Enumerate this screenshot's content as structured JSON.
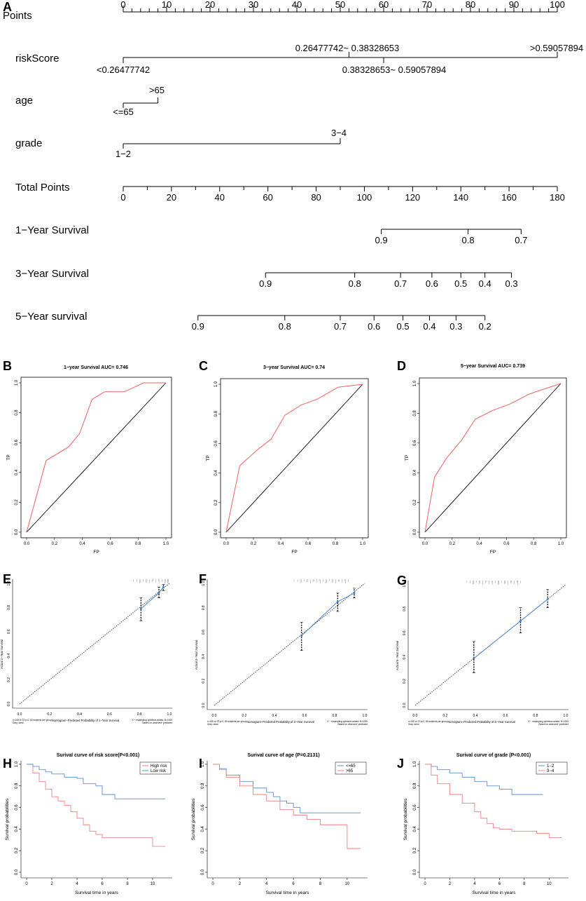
{
  "chart_data": [
    {
      "panel": "A",
      "type": "nomogram",
      "scales": [
        {
          "name": "Points",
          "min": 0,
          "max": 100,
          "ticks": [
            0,
            10,
            20,
            30,
            40,
            50,
            60,
            70,
            80,
            90,
            100
          ]
        },
        {
          "name": "riskScore",
          "labels": [
            "<0.26477742",
            "0.26477742~ 0.38328653",
            "0.38328653~ 0.59057894",
            ">0.59057894"
          ],
          "points": [
            0,
            52,
            60,
            100
          ]
        },
        {
          "name": "age",
          "labels": [
            "<=65",
            ">65"
          ],
          "points": [
            0,
            8
          ]
        },
        {
          "name": "grade",
          "labels": [
            "1−2",
            "3−4"
          ],
          "points": [
            0,
            50
          ]
        },
        {
          "name": "Total Points",
          "min": 0,
          "max": 180,
          "ticks": [
            0,
            20,
            40,
            60,
            80,
            100,
            120,
            140,
            160,
            180
          ]
        },
        {
          "name": "1−Year Survival",
          "probs": [
            "0.9",
            "0.8",
            "0.7"
          ],
          "total_points": [
            107,
            143,
            165
          ]
        },
        {
          "name": "3−Year Survival",
          "probs": [
            "0.9",
            "0.8",
            "0.7",
            "0.6",
            "0.5",
            "0.4",
            "0.3"
          ],
          "total_points": [
            59,
            96,
            115,
            128,
            140,
            150,
            161
          ]
        },
        {
          "name": "5−Year survival",
          "probs": [
            "0.9",
            "0.8",
            "0.7",
            "0.6",
            "0.5",
            "0.4",
            "0.3",
            "0.2"
          ],
          "total_points": [
            31,
            67,
            90,
            104,
            116,
            127,
            138,
            150
          ]
        }
      ]
    },
    {
      "panel": "B",
      "type": "line",
      "title": "1−year Survival AUC= 0.746",
      "xlabel": "FP",
      "ylabel": "TP",
      "xlim": [
        0,
        1
      ],
      "ylim": [
        0,
        1
      ],
      "ticks": [
        "0.0",
        "0.2",
        "0.4",
        "0.6",
        "0.8",
        "1.0"
      ],
      "x": [
        0,
        0.14,
        0.3,
        0.38,
        0.47,
        0.56,
        0.7,
        0.84,
        1
      ],
      "y": [
        0,
        0.48,
        0.57,
        0.66,
        0.89,
        0.94,
        0.94,
        1,
        1
      ]
    },
    {
      "panel": "C",
      "type": "line",
      "title": "3−year Survival AUC= 0.74",
      "xlabel": "FP",
      "ylabel": "TP",
      "xlim": [
        0,
        1
      ],
      "ylim": [
        0,
        1
      ],
      "ticks": [
        "0.0",
        "0.2",
        "0.4",
        "0.6",
        "0.8",
        "1.0"
      ],
      "x": [
        0,
        0.1,
        0.22,
        0.33,
        0.43,
        0.55,
        0.67,
        0.82,
        1
      ],
      "y": [
        0,
        0.45,
        0.55,
        0.63,
        0.79,
        0.86,
        0.9,
        0.98,
        1
      ]
    },
    {
      "panel": "D",
      "type": "line",
      "title": "5−year Survival AUC= 0.739",
      "xlabel": "FP",
      "ylabel": "TP",
      "xlim": [
        0,
        1
      ],
      "ylim": [
        0,
        1
      ],
      "ticks": [
        "0.0",
        "0.2",
        "0.4",
        "0.6",
        "0.8",
        "1.0"
      ],
      "x": [
        0,
        0.07,
        0.16,
        0.27,
        0.37,
        0.5,
        0.62,
        0.77,
        0.9,
        1
      ],
      "y": [
        0,
        0.37,
        0.5,
        0.62,
        0.76,
        0.82,
        0.86,
        0.93,
        0.97,
        1
      ]
    },
    {
      "panel": "E",
      "type": "calibration",
      "xlabel": "Nomogram−Predicted Probability of 1−Year Survival",
      "ylabel": "Actual 1−Year Survival",
      "ticks": [
        "0.0",
        "0.2",
        "0.4",
        "0.6",
        "0.8",
        "1.0"
      ],
      "notes": [
        "n=245 d=73 p=0, 80 subjects per group",
        "Gray: ideal",
        "X − resampling optimism added, B=1000",
        "Based on observed−predicted"
      ],
      "points": [
        {
          "x": 0.81,
          "y": 0.79,
          "lo": 0.69,
          "hi": 0.88
        },
        {
          "x": 0.93,
          "y": 0.92,
          "lo": 0.88,
          "hi": 0.97
        },
        {
          "x": 0.96,
          "y": 0.97,
          "lo": 0.94,
          "hi": 0.99
        }
      ]
    },
    {
      "panel": "F",
      "type": "calibration",
      "xlabel": "Nomogram−Predicted Probability of 3−Year Survival",
      "ylabel": "Actual 3−Year Survival",
      "ticks": [
        "0.0",
        "0.2",
        "0.4",
        "0.6",
        "0.8",
        "1.0"
      ],
      "notes": [
        "n=245 d=73 p=0, 80 subjects per group",
        "Gray: ideal",
        "X − resampling optimism added, B=1000",
        "Based on observed−predicted"
      ],
      "points": [
        {
          "x": 0.58,
          "y": 0.57,
          "lo": 0.45,
          "hi": 0.68
        },
        {
          "x": 0.82,
          "y": 0.85,
          "lo": 0.77,
          "hi": 0.92
        },
        {
          "x": 0.93,
          "y": 0.92,
          "lo": 0.88,
          "hi": 0.96
        }
      ]
    },
    {
      "panel": "G",
      "type": "calibration",
      "xlabel": "Nomogram−Predicted Probability of 5−Year Survival",
      "ylabel": "Actual 5−Year Survival",
      "ticks": [
        "0.0",
        "0.2",
        "0.4",
        "0.6",
        "0.8",
        "1.0"
      ],
      "notes": [
        "n=245 d=73 p=0, 80 subjects per group",
        "Gray: ideal",
        "X − resampling optimism added, B=1000",
        "Based on observed−predicted"
      ],
      "points": [
        {
          "x": 0.39,
          "y": 0.39,
          "lo": 0.27,
          "hi": 0.53
        },
        {
          "x": 0.7,
          "y": 0.7,
          "lo": 0.6,
          "hi": 0.81
        },
        {
          "x": 0.88,
          "y": 0.88,
          "lo": 0.81,
          "hi": 0.96
        }
      ]
    },
    {
      "panel": "H",
      "type": "line",
      "title": "Surival curve of risk score(P<0.001)",
      "xlabel": "Survival time in years",
      "ylabel": "Survival probabilities",
      "xlim": [
        0,
        11
      ],
      "ylim": [
        0,
        1
      ],
      "xticks": [
        "0",
        "2",
        "4",
        "6",
        "8",
        "10"
      ],
      "yticks": [
        "0.0",
        "0.2",
        "0.4",
        "0.6",
        "0.8",
        "1.0"
      ],
      "series": [
        {
          "name": "High risk",
          "color": "#f08080",
          "x": [
            0,
            0.5,
            1,
            1.5,
            2,
            2.5,
            3,
            3.5,
            4,
            4.5,
            5,
            5.5,
            6,
            7,
            8,
            9,
            10,
            11
          ],
          "y": [
            1,
            0.92,
            0.84,
            0.77,
            0.7,
            0.66,
            0.62,
            0.56,
            0.5,
            0.44,
            0.38,
            0.35,
            0.32,
            0.32,
            0.32,
            0.32,
            0.24,
            0.24
          ]
        },
        {
          "name": "Low risk",
          "color": "#5b8ed6",
          "x": [
            0,
            0.5,
            1,
            1.5,
            2,
            3,
            4,
            4.5,
            5,
            5.5,
            6,
            7,
            8,
            9,
            10,
            11
          ],
          "y": [
            1,
            0.98,
            0.95,
            0.93,
            0.91,
            0.88,
            0.87,
            0.82,
            0.82,
            0.8,
            0.72,
            0.68,
            0.68,
            0.68,
            0.68,
            0.68
          ]
        }
      ]
    },
    {
      "panel": "I",
      "type": "line",
      "title": "Surival curve of age (P=0.2131)",
      "xlabel": "Survival time in years",
      "ylabel": "Survival probabilities",
      "xlim": [
        0,
        11
      ],
      "ylim": [
        0,
        1
      ],
      "xticks": [
        "0",
        "2",
        "4",
        "6",
        "8",
        "10"
      ],
      "yticks": [
        "0.0",
        "0.2",
        "0.4",
        "0.6",
        "0.8",
        "1.0"
      ],
      "series": [
        {
          "name": "<=65",
          "color": "#5b8ed6",
          "x": [
            0,
            0.5,
            1,
            2,
            3,
            4,
            4.5,
            5,
            5.5,
            6,
            6.5,
            8,
            10,
            11
          ],
          "y": [
            1,
            0.96,
            0.9,
            0.84,
            0.78,
            0.74,
            0.7,
            0.66,
            0.64,
            0.6,
            0.55,
            0.55,
            0.55,
            0.55
          ]
        },
        {
          "name": ">65",
          "color": "#f08080",
          "x": [
            0,
            0.5,
            1,
            2,
            3,
            4,
            5,
            6,
            7,
            8,
            9.5,
            10,
            11
          ],
          "y": [
            1,
            0.95,
            0.88,
            0.8,
            0.72,
            0.66,
            0.58,
            0.53,
            0.49,
            0.44,
            0.44,
            0.22,
            0.22
          ]
        }
      ]
    },
    {
      "panel": "J",
      "type": "line",
      "title": "Surival curve of grade (P<0.001)",
      "xlabel": "Survival time in years",
      "ylabel": "Survival probabilities",
      "xlim": [
        0,
        11
      ],
      "ylim": [
        0,
        1
      ],
      "xticks": [
        "0",
        "2",
        "4",
        "6",
        "8",
        "10"
      ],
      "yticks": [
        "0.0",
        "0.2",
        "0.4",
        "0.6",
        "0.8",
        "1.0"
      ],
      "series": [
        {
          "name": "1−2",
          "color": "#5b8ed6",
          "x": [
            0,
            0.5,
            1,
            2,
            3,
            4,
            5,
            6,
            7,
            8,
            9.5
          ],
          "y": [
            1,
            0.98,
            0.95,
            0.92,
            0.88,
            0.84,
            0.8,
            0.77,
            0.72,
            0.72,
            0.72
          ]
        },
        {
          "name": "3−4",
          "color": "#f08080",
          "x": [
            0,
            0.5,
            1,
            2,
            3,
            4,
            4.5,
            5,
            5.5,
            6,
            7,
            8,
            9,
            10,
            11
          ],
          "y": [
            1,
            0.9,
            0.82,
            0.72,
            0.64,
            0.56,
            0.5,
            0.45,
            0.41,
            0.4,
            0.38,
            0.38,
            0.36,
            0.32,
            0.32
          ]
        }
      ]
    }
  ]
}
